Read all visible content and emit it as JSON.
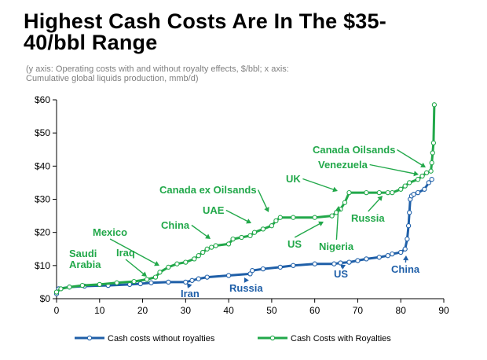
{
  "header": {
    "title_line1": "Highest Cash Costs Are In The $35-",
    "title_line2": "40/bbl Range",
    "subtitle_line1": "(y axis: Operating costs with and without royalty effects, $/bbl; x axis:",
    "subtitle_line2": "Cumulative global liquids production, mmb/d)"
  },
  "chart_data": {
    "type": "line",
    "title": "Highest Cash Costs Are In The $35-40/bbl Range",
    "subtitle": "(y axis: Operating costs with and without royalty effects, $/bbl; x axis: Cumulative global liquids production, mmb/d)",
    "xlim": [
      0,
      90
    ],
    "ylim": [
      0,
      60
    ],
    "x_ticks": [
      "0",
      "10",
      "20",
      "30",
      "40",
      "50",
      "60",
      "70",
      "80",
      "90"
    ],
    "y_ticks": [
      "$0",
      "$10",
      "$20",
      "$30",
      "$40",
      "$50",
      "$60"
    ],
    "grid": false,
    "legend_position": "bottom",
    "colors": {
      "without": "#1f5fa8",
      "with": "#22a84a"
    },
    "series": [
      {
        "name": "Cash costs without royalties",
        "x": [
          0,
          0.5,
          3,
          6.5,
          12,
          17,
          19.5,
          22,
          26,
          30,
          31.5,
          33,
          35,
          40,
          45,
          45.5,
          48,
          52,
          55,
          60,
          64.5,
          66,
          68,
          70,
          72,
          75,
          77,
          78,
          80,
          81,
          81.5,
          81.8,
          82,
          82.2,
          82.5,
          83,
          84,
          85.5,
          86.5,
          87.2
        ],
        "y": [
          1.5,
          3,
          3.5,
          3.8,
          4,
          4.3,
          4.5,
          4.8,
          5,
          5,
          5.5,
          6,
          6.5,
          7,
          7.5,
          8.5,
          9,
          9.5,
          10,
          10.5,
          10.5,
          10.8,
          11,
          11.5,
          12,
          12.5,
          13,
          13.5,
          14,
          15,
          18,
          22,
          26,
          30,
          31,
          31.5,
          32,
          33,
          35,
          36
        ]
      },
      {
        "name": "Cash Costs with Royalties",
        "x": [
          0,
          1,
          3,
          6,
          10,
          14,
          18,
          21,
          23,
          24,
          26,
          28,
          30,
          32,
          33,
          34,
          35,
          36,
          37,
          40,
          41,
          43,
          45,
          46,
          48,
          50,
          51,
          52,
          55,
          60,
          64,
          65,
          66,
          67,
          68,
          72,
          75,
          77,
          78,
          80,
          81,
          82,
          84,
          85,
          86,
          87,
          87.2,
          87.4,
          87.6,
          87.8
        ],
        "y": [
          2,
          3,
          3.5,
          4,
          4.3,
          4.8,
          5.2,
          5.8,
          6.5,
          8,
          9.5,
          10.5,
          11,
          12,
          13,
          14,
          15,
          15.5,
          16,
          16.5,
          18,
          18.5,
          19,
          20,
          21,
          22,
          23.5,
          24.5,
          24.5,
          24.5,
          25,
          26,
          27,
          29,
          32,
          32,
          32,
          32,
          32,
          33,
          34,
          35,
          36,
          37,
          38,
          38.5,
          41,
          44,
          47,
          58.5
        ]
      }
    ],
    "annotations": [
      {
        "text": "Saudi",
        "series": "with"
      },
      {
        "text": "Arabia",
        "series": "with"
      },
      {
        "text": "Iraq",
        "series": "with"
      },
      {
        "text": "Mexico",
        "series": "with"
      },
      {
        "text": "China",
        "series": "with"
      },
      {
        "text": "UAE",
        "series": "with"
      },
      {
        "text": "Canada ex Oilsands",
        "series": "with"
      },
      {
        "text": "UK",
        "series": "with"
      },
      {
        "text": "US",
        "series": "with"
      },
      {
        "text": "Nigeria",
        "series": "with"
      },
      {
        "text": "Russia",
        "series": "with"
      },
      {
        "text": "Canada Oilsands",
        "series": "with"
      },
      {
        "text": "Venezuela",
        "series": "with"
      },
      {
        "text": "Iran",
        "series": "without"
      },
      {
        "text": "Russia",
        "series": "without"
      },
      {
        "text": "US",
        "series": "without"
      },
      {
        "text": "China",
        "series": "without"
      }
    ]
  }
}
